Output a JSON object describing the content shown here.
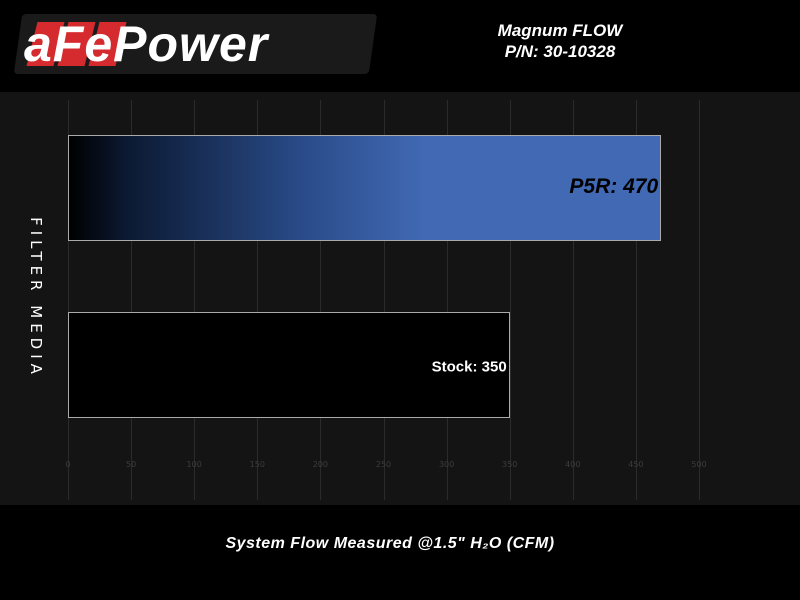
{
  "header": {
    "logo_text": "aFePower",
    "product": "Magnum FLOW",
    "part_number": "P/N: 30-10328"
  },
  "chart_data": {
    "type": "bar",
    "orientation": "horizontal",
    "categories": [
      "P5R",
      "Stock"
    ],
    "values": [
      470,
      350
    ],
    "data_labels": [
      "P5R: 470",
      "Stock: 350"
    ],
    "colors": [
      "#4169b4",
      "#000000"
    ],
    "xlabel": "System Flow Measured @1.5\" H₂O (CFM)",
    "ylabel": "FILTER MEDIA",
    "xlim": [
      0,
      500
    ],
    "xticks": [
      0,
      50,
      100,
      150,
      200,
      250,
      300,
      350,
      400,
      450,
      500
    ],
    "grid": true
  }
}
